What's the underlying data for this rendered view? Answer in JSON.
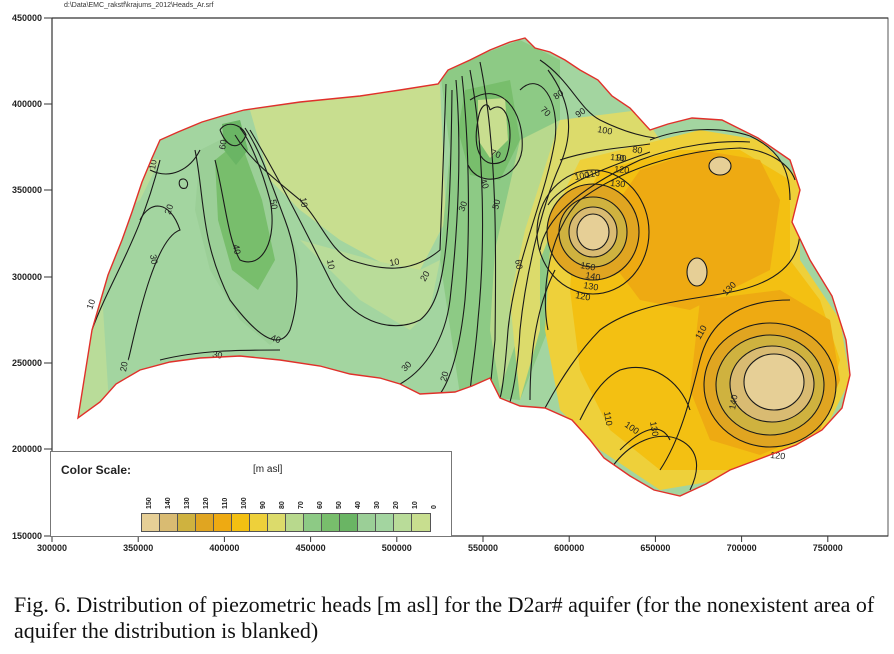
{
  "file_path": "d:\\Data\\EMC_rakstf\\krajums_2012\\Heads_Ar.srf",
  "map": {
    "y_ticks": [
      "450000",
      "400000",
      "350000",
      "300000",
      "250000",
      "200000",
      "150000"
    ],
    "x_ticks": [
      "300000",
      "350000",
      "400000",
      "450000",
      "500000",
      "550000",
      "600000",
      "650000",
      "700000",
      "750000"
    ],
    "boundary_color": "#e0302a",
    "contour_labels": [
      "10",
      "10",
      "20",
      "30",
      "40",
      "50",
      "60",
      "10",
      "20",
      "30",
      "40",
      "30",
      "20",
      "10",
      "10",
      "20",
      "30",
      "40",
      "50",
      "60",
      "70",
      "80",
      "90",
      "100",
      "110",
      "120",
      "130",
      "70",
      "80",
      "90",
      "100",
      "110",
      "120",
      "130",
      "140",
      "150",
      "140",
      "130",
      "110",
      "100",
      "110",
      "120",
      "130"
    ]
  },
  "legend": {
    "title": "Color Scale:",
    "unit": "[m asl]",
    "levels": [
      "150",
      "140",
      "130",
      "120",
      "110",
      "100",
      "90",
      "80",
      "70",
      "60",
      "50",
      "40",
      "30",
      "20",
      "10",
      "0"
    ],
    "colors": [
      "#e6cf96",
      "#d9bb72",
      "#cfb23f",
      "#e0a521",
      "#eeaa12",
      "#f3c012",
      "#eed03a",
      "#dcdb6b",
      "#b8d98d",
      "#8dca85",
      "#78be6c",
      "#6ab564",
      "#9bcf97",
      "#a3d5a0",
      "#b9dc99",
      "#c8de8f"
    ]
  },
  "caption": "Fig. 6. Distribution of piezometric heads [m asl] for the D2ar# aquifer (for the nonexistent area of aquifer the distribution is blanked)"
}
